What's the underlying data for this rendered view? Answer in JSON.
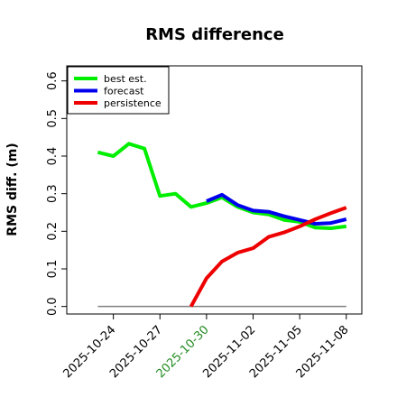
{
  "chart_data": {
    "type": "line",
    "title": "RMS difference",
    "xlabel": "",
    "ylabel": "RMS diff. (m)",
    "xlim": [
      "2025-10-21",
      "2025-11-09"
    ],
    "ylim": [
      -0.02,
      0.64
    ],
    "yticks": [
      "0.0",
      "0.1",
      "0.2",
      "0.3",
      "0.4",
      "0.5",
      "0.6"
    ],
    "xticks": [
      {
        "label": "2025-10-24",
        "color": "#000000"
      },
      {
        "label": "2025-10-27",
        "color": "#000000"
      },
      {
        "label": "2025-10-30",
        "color": "#228B22"
      },
      {
        "label": "2025-11-02",
        "color": "#000000"
      },
      {
        "label": "2025-11-05",
        "color": "#000000"
      },
      {
        "label": "2025-11-08",
        "color": "#000000"
      }
    ],
    "grid": false,
    "legend_position": "top-left",
    "reference_line": {
      "y": 0.0,
      "color": "#808080",
      "x": [
        "2025-10-23",
        "2025-11-08"
      ]
    },
    "series": [
      {
        "name": "best est.",
        "color": "#00ee00",
        "x": [
          "2025-10-23",
          "2025-10-24",
          "2025-10-25",
          "2025-10-26",
          "2025-10-27",
          "2025-10-28",
          "2025-10-29",
          "2025-10-30",
          "2025-10-31",
          "2025-11-01",
          "2025-11-02",
          "2025-11-03",
          "2025-11-04",
          "2025-11-05",
          "2025-11-06",
          "2025-11-07",
          "2025-11-08"
        ],
        "values": [
          0.41,
          0.4,
          0.433,
          0.42,
          0.294,
          0.3,
          0.265,
          0.275,
          0.29,
          0.265,
          0.25,
          0.245,
          0.23,
          0.225,
          0.21,
          0.208,
          0.213
        ]
      },
      {
        "name": "forecast",
        "color": "#0000ee",
        "x": [
          "2025-10-30",
          "2025-10-31",
          "2025-11-01",
          "2025-11-02",
          "2025-11-03",
          "2025-11-04",
          "2025-11-05",
          "2025-11-06",
          "2025-11-07",
          "2025-11-08"
        ],
        "values": [
          0.28,
          0.297,
          0.27,
          0.255,
          0.252,
          0.24,
          0.23,
          0.22,
          0.222,
          0.232
        ]
      },
      {
        "name": "persistence",
        "color": "#ee0000",
        "x": [
          "2025-10-29",
          "2025-10-30",
          "2025-10-31",
          "2025-11-01",
          "2025-11-02",
          "2025-11-03",
          "2025-11-04",
          "2025-11-05",
          "2025-11-06",
          "2025-11-07",
          "2025-11-08"
        ],
        "values": [
          0.0,
          0.075,
          0.12,
          0.143,
          0.155,
          0.185,
          0.197,
          0.213,
          0.232,
          0.248,
          0.263
        ]
      }
    ]
  }
}
